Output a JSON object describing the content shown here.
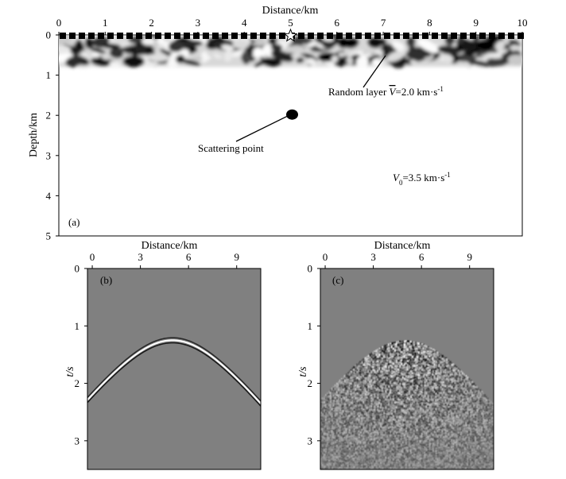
{
  "chart_data": [
    {
      "type": "diagram",
      "panel_label": "(a)",
      "xlabel": "Distance/km",
      "ylabel": "Depth/km",
      "xlim": [
        0,
        10
      ],
      "ylim": [
        0,
        5
      ],
      "x_ticks": [
        "0",
        "1",
        "2",
        "3",
        "4",
        "5",
        "6",
        "7",
        "8",
        "9",
        "10"
      ],
      "y_ticks": [
        "0",
        "1",
        "2",
        "3",
        "4",
        "5"
      ],
      "random_layer": {
        "depth_top": 0.1,
        "depth_bottom": 0.75
      },
      "source_star": {
        "x": 5.0,
        "depth": 0.0
      },
      "scattering_point": {
        "x": 5.0,
        "depth": 2.0
      },
      "annotations": {
        "random_layer_prefix": "Random layer ",
        "random_layer_vbar": "V",
        "random_layer_value": "=2.0 km·s",
        "random_layer_exp": "-1",
        "scattering_point": "Scattering point",
        "v0_symbol": "V",
        "v0_sub": "0",
        "v0_value": "=3.5 km·s",
        "v0_exp": "-1"
      },
      "colors": {
        "layer_dark": "#000000",
        "layer_light": "#ffffff"
      }
    },
    {
      "type": "seismic-section",
      "panel_label": "(b)",
      "xlabel": "Distance/km",
      "ylabel": "t/s",
      "xlim": [
        -0.3,
        10.5
      ],
      "ylim": [
        0,
        3.5
      ],
      "x_ticks": [
        "0",
        "3",
        "6",
        "9"
      ],
      "y_ticks": [
        "0",
        "1",
        "2",
        "3"
      ],
      "event": {
        "type": "diffraction-hyperbola",
        "apex_x": 5.0,
        "apex_t": 1.25,
        "edge_t": 2.2
      },
      "background": "#808080"
    },
    {
      "type": "seismic-section",
      "panel_label": "(c)",
      "xlabel": "Distance/km",
      "ylabel": "t/s",
      "xlim": [
        -0.3,
        10.5
      ],
      "ylim": [
        0,
        3.5
      ],
      "x_ticks": [
        "0",
        "3",
        "6",
        "9"
      ],
      "y_ticks": [
        "0",
        "1",
        "2",
        "3"
      ],
      "event": {
        "type": "scattered-noise-below-hyperbola",
        "apex_x": 5.0,
        "apex_t": 1.25,
        "edge_t": 2.2
      },
      "background": "#808080"
    }
  ]
}
